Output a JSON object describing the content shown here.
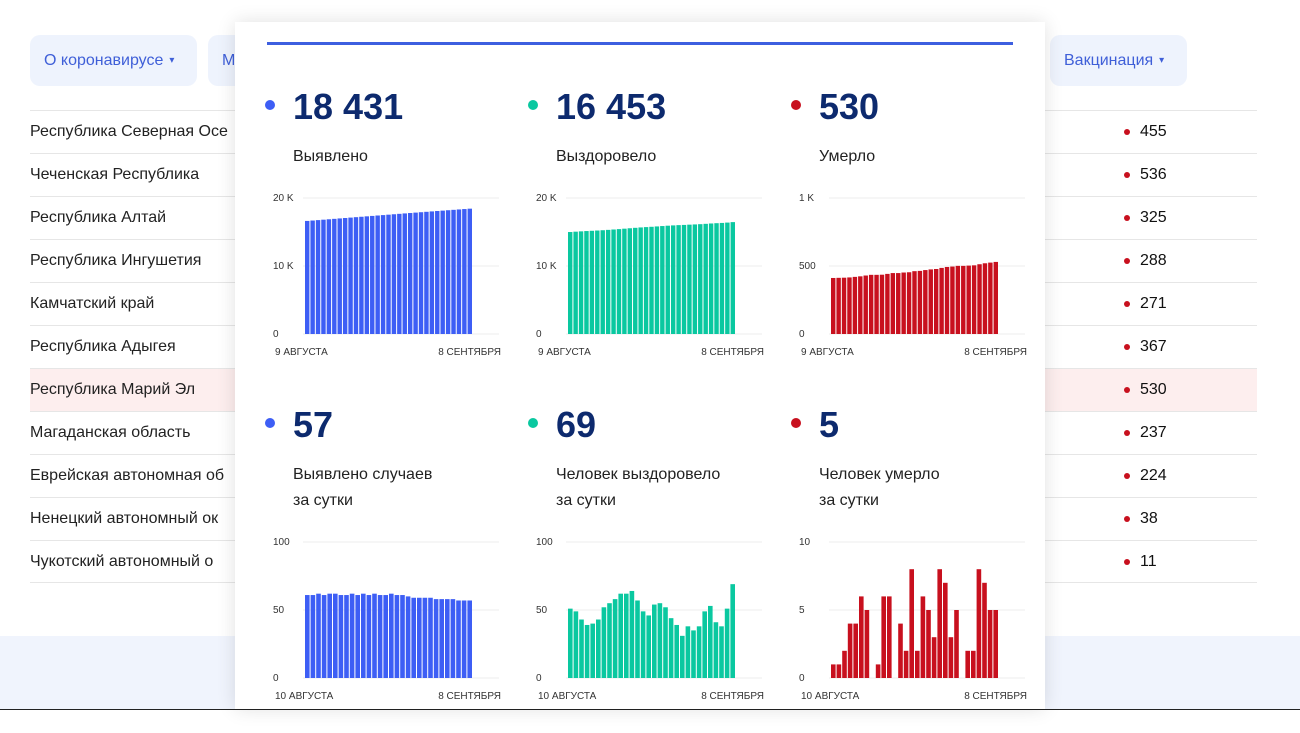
{
  "nav": {
    "about": "О коронавирусе",
    "second": "М",
    "vaccination": "Вакцинация",
    "caret": "▾"
  },
  "table": {
    "rows": [
      {
        "name": "Республика Северная Осе",
        "value": "455"
      },
      {
        "name": "Чеченская Республика",
        "value": "536"
      },
      {
        "name": "Республика Алтай",
        "value": "325"
      },
      {
        "name": "Республика Ингушетия",
        "value": "288"
      },
      {
        "name": "Камчатский край",
        "value": "271"
      },
      {
        "name": "Республика Адыгея",
        "value": "367"
      },
      {
        "name": "Республика Марий Эл",
        "value": "530",
        "highlighted": true
      },
      {
        "name": "Магаданская область",
        "value": "237"
      },
      {
        "name": "Еврейская автономная об",
        "value": "224"
      },
      {
        "name": "Ненецкий автономный ок",
        "value": "38"
      },
      {
        "name": "Чукотский автономный о",
        "value": "11"
      }
    ]
  },
  "colors": {
    "cases": "#3d5ef5",
    "recovered": "#0ac8a0",
    "deaths": "#c8101e",
    "number": "#0d2a6e"
  },
  "stats": [
    {
      "number": "18 431",
      "label": "Выявлено",
      "label2": ""
    },
    {
      "number": "16 453",
      "label": "Выздоровело",
      "label2": ""
    },
    {
      "number": "530",
      "label": "Умерло",
      "label2": ""
    },
    {
      "number": "57",
      "label": "Выявлено случаев",
      "label2": "за сутки"
    },
    {
      "number": "69",
      "label": "Человек выздоровело",
      "label2": "за сутки"
    },
    {
      "number": "5",
      "label": "Человек умерло",
      "label2": "за сутки"
    }
  ],
  "chart_data": [
    {
      "type": "bar",
      "color": "#3d5ef5",
      "ylim": [
        0,
        20000
      ],
      "yticks": [
        "0",
        "10 K",
        "20 K"
      ],
      "x_start": "9 АВГУСТА",
      "x_end": "8 СЕНТЯБРЯ",
      "values": [
        16627,
        16688,
        16749,
        16811,
        16872,
        16934,
        16996,
        17057,
        17118,
        17180,
        17241,
        17303,
        17364,
        17426,
        17487,
        17548,
        17610,
        17671,
        17732,
        17792,
        17851,
        17910,
        17969,
        18028,
        18086,
        18144,
        18202,
        18260,
        18317,
        18374,
        18431
      ]
    },
    {
      "type": "bar",
      "color": "#0ac8a0",
      "ylim": [
        0,
        20000
      ],
      "yticks": [
        "0",
        "10 K",
        "20 K"
      ],
      "x_start": "9 АВГУСТА",
      "x_end": "8 СЕНТЯБРЯ",
      "values": [
        14996,
        15047,
        15096,
        15139,
        15178,
        15218,
        15261,
        15313,
        15368,
        15426,
        15488,
        15550,
        15614,
        15671,
        15720,
        15766,
        15820,
        15875,
        15927,
        15971,
        16010,
        16041,
        16079,
        16114,
        16152,
        16201,
        16254,
        16295,
        16333,
        16384,
        16453
      ]
    },
    {
      "type": "bar",
      "color": "#c8101e",
      "ylim": [
        0,
        1000
      ],
      "yticks": [
        "0",
        "500",
        "1 K"
      ],
      "x_start": "9 АВГУСТА",
      "x_end": "8 СЕНТЯБРЯ",
      "values": [
        412,
        413,
        414,
        416,
        420,
        424,
        430,
        435,
        435,
        436,
        442,
        448,
        448,
        452,
        454,
        462,
        464,
        470,
        475,
        478,
        486,
        493,
        496,
        501,
        501,
        503,
        505,
        513,
        520,
        525,
        530
      ]
    },
    {
      "type": "bar",
      "color": "#3d5ef5",
      "ylim": [
        0,
        100
      ],
      "yticks": [
        "0",
        "50",
        "100"
      ],
      "x_start": "10 АВГУСТА",
      "x_end": "8 СЕНТЯБРЯ",
      "values": [
        61,
        61,
        62,
        61,
        62,
        62,
        61,
        61,
        62,
        61,
        62,
        61,
        62,
        61,
        61,
        62,
        61,
        61,
        60,
        59,
        59,
        59,
        59,
        58,
        58,
        58,
        58,
        57,
        57,
        57
      ]
    },
    {
      "type": "bar",
      "color": "#0ac8a0",
      "ylim": [
        0,
        100
      ],
      "yticks": [
        "0",
        "50",
        "100"
      ],
      "x_start": "10 АВГУСТА",
      "x_end": "8 СЕНТЯБРЯ",
      "values": [
        51,
        49,
        43,
        39,
        40,
        43,
        52,
        55,
        58,
        62,
        62,
        64,
        57,
        49,
        46,
        54,
        55,
        52,
        44,
        39,
        31,
        38,
        35,
        38,
        49,
        53,
        41,
        38,
        51,
        69
      ]
    },
    {
      "type": "bar",
      "color": "#c8101e",
      "ylim": [
        0,
        10
      ],
      "yticks": [
        "0",
        "5",
        "10"
      ],
      "x_start": "10 АВГУСТА",
      "x_end": "8 СЕНТЯБРЯ",
      "values": [
        1,
        1,
        2,
        4,
        4,
        6,
        5,
        0,
        1,
        6,
        6,
        0,
        4,
        2,
        8,
        2,
        6,
        5,
        3,
        8,
        7,
        3,
        5,
        0,
        2,
        2,
        8,
        7,
        5,
        5
      ]
    }
  ]
}
